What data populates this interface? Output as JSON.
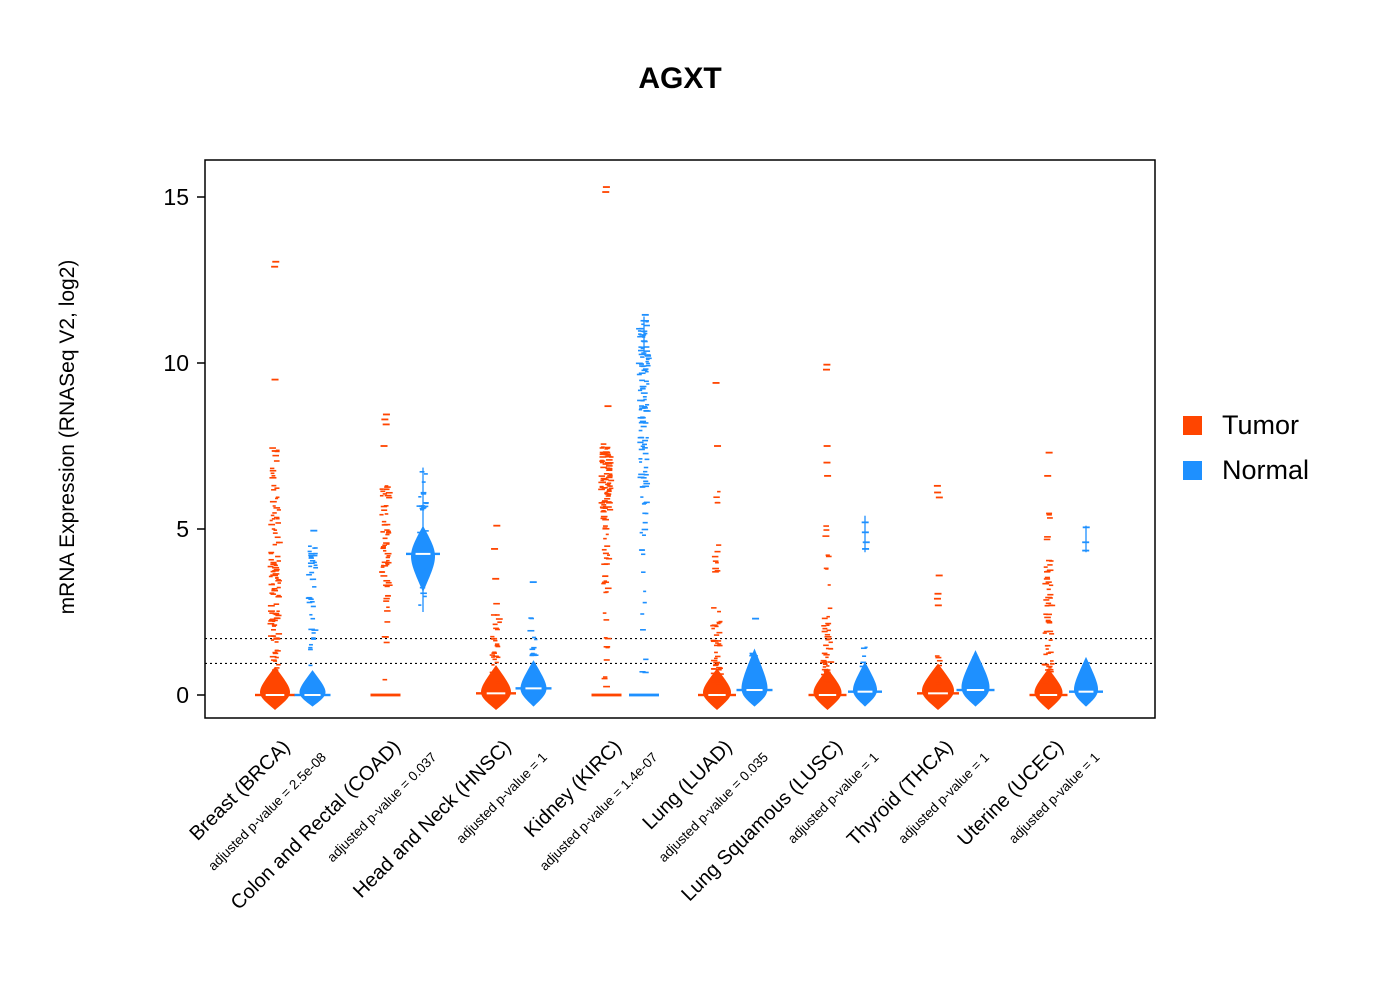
{
  "legend": {
    "position": "right",
    "items": [
      {
        "series": "tumor",
        "label": "Tumor"
      },
      {
        "series": "normal",
        "label": "Normal"
      }
    ]
  },
  "chart_data": {
    "type": "violin",
    "title": "AGXT",
    "ylabel": "mRNA Expression (RNASeq V2, log2)",
    "yticks": [
      0,
      5,
      10,
      15
    ],
    "ylim": [
      -0.8,
      16.2
    ],
    "grid": false,
    "reference_lines": [
      0.95,
      1.7
    ],
    "series_names": [
      "Tumor",
      "Normal"
    ],
    "colors": {
      "tumor": "#ff4500",
      "normal": "#1e90ff"
    },
    "groups": [
      {
        "label": "Breast (BRCA)",
        "pvalue_label": "adjusted p-value = 2.5e-08",
        "tumor": {
          "median": 0,
          "blob": {
            "lo": -0.45,
            "hi": 0.85,
            "peak": 0.05,
            "max_width": 30
          },
          "strips": [
            {
              "lo": 0.4,
              "hi": 2.0,
              "n": 25,
              "spread": 4
            },
            {
              "lo": 2.0,
              "hi": 5.6,
              "n": 70,
              "spread": 4.5
            },
            {
              "lo": 5.6,
              "hi": 7.5,
              "n": 18,
              "spread": 3
            }
          ],
          "outliers": [
            7.35,
            9.5,
            12.9,
            13.05
          ]
        },
        "normal": {
          "median": 0,
          "blob": {
            "lo": -0.35,
            "hi": 0.75,
            "peak": 0.05,
            "max_width": 26
          },
          "strips": [
            {
              "lo": 0.8,
              "hi": 2.3,
              "n": 10,
              "spread": 3
            },
            {
              "lo": 2.3,
              "hi": 4.6,
              "n": 28,
              "spread": 3.5
            }
          ],
          "outliers": [
            4.95
          ]
        }
      },
      {
        "label": "Colon and Rectal (COAD)",
        "pvalue_label": "adjusted p-value = 0.037",
        "tumor": {
          "median": 0,
          "blob": null,
          "strips": [
            {
              "lo": 0.4,
              "hi": 2.6,
              "n": 6,
              "spread": 2
            },
            {
              "lo": 2.6,
              "hi": 6.3,
              "n": 55,
              "spread": 4
            }
          ],
          "outliers": [
            7.5,
            8.15,
            8.3,
            8.45
          ]
        },
        "normal": {
          "median": 4.25,
          "blob": {
            "lo": 3.1,
            "hi": 5.1,
            "peak": 4.2,
            "max_width": 24
          },
          "line": [
            2.5,
            6.85
          ],
          "strips": [
            {
              "lo": 2.5,
              "hi": 6.8,
              "n": 38,
              "spread": 4
            }
          ],
          "outliers": []
        }
      },
      {
        "label": "Head and Neck (HNSC)",
        "pvalue_label": "adjusted p-value = 1",
        "tumor": {
          "median": 0.05,
          "blob": {
            "lo": -0.45,
            "hi": 0.9,
            "peak": 0.05,
            "max_width": 30
          },
          "strips": [
            {
              "lo": 0.3,
              "hi": 2.8,
              "n": 30,
              "spread": 4
            }
          ],
          "outliers": [
            3.5,
            4.4,
            5.1
          ]
        },
        "normal": {
          "median": 0.2,
          "blob": {
            "lo": -0.35,
            "hi": 1.05,
            "peak": 0.15,
            "max_width": 26
          },
          "strips": [
            {
              "lo": 0.4,
              "hi": 2.5,
              "n": 16,
              "spread": 3
            }
          ],
          "outliers": [
            3.4
          ]
        }
      },
      {
        "label": "Kidney (KIRC)",
        "pvalue_label": "adjusted p-value = 1.4e-07",
        "tumor": {
          "median": 0,
          "blob": null,
          "strips": [
            {
              "lo": 0.2,
              "hi": 2.5,
              "n": 10,
              "spread": 2
            },
            {
              "lo": 2.5,
              "hi": 5.5,
              "n": 25,
              "spread": 3
            },
            {
              "lo": 5.5,
              "hi": 7.6,
              "n": 85,
              "spread": 5
            }
          ],
          "outliers": [
            8.7,
            15.15,
            15.3
          ]
        },
        "normal": {
          "median": 0,
          "blob": null,
          "line": [
            10.3,
            11.4
          ],
          "strips": [
            {
              "lo": 0.3,
              "hi": 4.0,
              "n": 8,
              "spread": 2
            },
            {
              "lo": 4.0,
              "hi": 6.5,
              "n": 18,
              "spread": 3
            },
            {
              "lo": 6.5,
              "hi": 8.5,
              "n": 28,
              "spread": 4
            },
            {
              "lo": 8.5,
              "hi": 11.3,
              "n": 65,
              "spread": 5
            }
          ],
          "outliers": [
            11.45
          ]
        }
      },
      {
        "label": "Lung (LUAD)",
        "pvalue_label": "adjusted p-value = 0.035",
        "tumor": {
          "median": 0,
          "blob": {
            "lo": -0.45,
            "hi": 0.8,
            "peak": 0.05,
            "max_width": 28
          },
          "strips": [
            {
              "lo": 0.3,
              "hi": 2.7,
              "n": 40,
              "spread": 4
            },
            {
              "lo": 3.3,
              "hi": 4.8,
              "n": 8,
              "spread": 2
            },
            {
              "lo": 5.2,
              "hi": 6.2,
              "n": 4,
              "spread": 2
            }
          ],
          "outliers": [
            7.5,
            9.4
          ]
        },
        "normal": {
          "median": 0.15,
          "blob": {
            "lo": -0.35,
            "hi": 1.4,
            "peak": 0.1,
            "max_width": 26
          },
          "strips": [
            {
              "lo": 0.3,
              "hi": 1.5,
              "n": 8,
              "spread": 2
            }
          ],
          "outliers": [
            2.3
          ]
        }
      },
      {
        "label": "Lung Squamous (LUSC)",
        "pvalue_label": "adjusted p-value = 1",
        "tumor": {
          "median": 0,
          "blob": {
            "lo": -0.45,
            "hi": 0.8,
            "peak": 0.05,
            "max_width": 28
          },
          "strips": [
            {
              "lo": 0.3,
              "hi": 2.7,
              "n": 35,
              "spread": 4
            },
            {
              "lo": 3.0,
              "hi": 5.2,
              "n": 8,
              "spread": 2
            }
          ],
          "outliers": [
            6.6,
            7.0,
            7.5,
            9.8,
            9.95
          ]
        },
        "normal": {
          "median": 0.1,
          "blob": {
            "lo": -0.35,
            "hi": 1.0,
            "peak": 0.1,
            "max_width": 24
          },
          "line": [
            4.3,
            5.4
          ],
          "strips": [
            {
              "lo": 0.2,
              "hi": 1.5,
              "n": 8,
              "spread": 2
            }
          ],
          "outliers": [
            4.4,
            4.6,
            4.9,
            5.2
          ]
        }
      },
      {
        "label": "Thyroid (THCA)",
        "pvalue_label": "adjusted p-value = 1",
        "tumor": {
          "median": 0.05,
          "blob": {
            "lo": -0.45,
            "hi": 0.95,
            "peak": 0.1,
            "max_width": 32
          },
          "strips": [
            {
              "lo": 0.3,
              "hi": 1.4,
              "n": 8,
              "spread": 2
            }
          ],
          "outliers": [
            2.7,
            2.9,
            3.05,
            3.6,
            5.95,
            6.1,
            6.3
          ]
        },
        "normal": {
          "median": 0.15,
          "blob": {
            "lo": -0.35,
            "hi": 1.35,
            "peak": 0.15,
            "max_width": 28
          },
          "strips": [
            {
              "lo": 0.2,
              "hi": 1.3,
              "n": 6,
              "spread": 2
            }
          ],
          "outliers": []
        }
      },
      {
        "label": "Uterine (UCEC)",
        "pvalue_label": "adjusted p-value = 1",
        "tumor": {
          "median": 0,
          "blob": {
            "lo": -0.45,
            "hi": 0.8,
            "peak": 0.05,
            "max_width": 28
          },
          "strips": [
            {
              "lo": 0.3,
              "hi": 3.0,
              "n": 38,
              "spread": 4
            },
            {
              "lo": 3.0,
              "hi": 4.6,
              "n": 14,
              "spread": 3
            },
            {
              "lo": 4.6,
              "hi": 5.6,
              "n": 5,
              "spread": 2
            }
          ],
          "outliers": [
            6.6,
            7.3
          ]
        },
        "normal": {
          "median": 0.1,
          "blob": {
            "lo": -0.35,
            "hi": 1.15,
            "peak": 0.1,
            "max_width": 24
          },
          "line": [
            4.3,
            5.1
          ],
          "strips": [
            {
              "lo": 0.2,
              "hi": 1.2,
              "n": 8,
              "spread": 2
            }
          ],
          "outliers": [
            4.35,
            4.6,
            5.05
          ]
        }
      }
    ]
  }
}
